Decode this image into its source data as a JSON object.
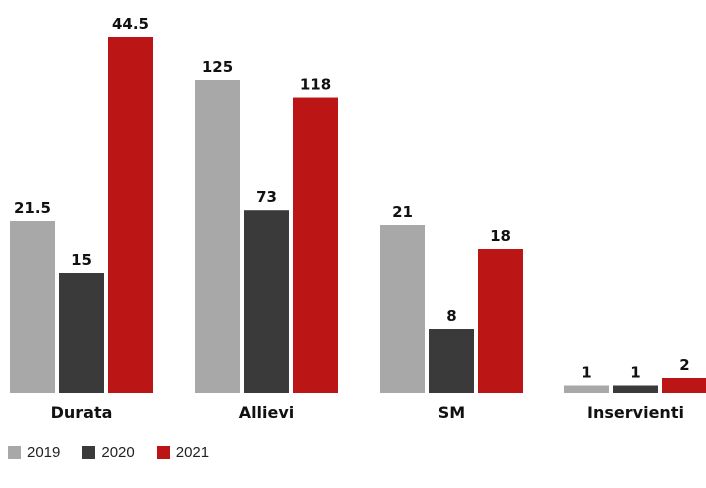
{
  "chart_data": {
    "type": "bar",
    "categories": [
      "Durata",
      "Allievi",
      "SM",
      "Inservienti"
    ],
    "series": [
      {
        "name": "2019",
        "values": [
          21.5,
          125,
          21,
          1
        ],
        "color": "#a8a8a8"
      },
      {
        "name": "2020",
        "values": [
          15,
          73,
          8,
          1
        ],
        "color": "#3a3a3a"
      },
      {
        "name": "2021",
        "values": [
          44.5,
          118,
          18,
          2
        ],
        "color": "#bc1515"
      }
    ],
    "value_labels": [
      [
        "21.5",
        "125",
        "21",
        "1"
      ],
      [
        "15",
        "73",
        "8",
        "1"
      ],
      [
        "44.5",
        "118",
        "18",
        "2"
      ]
    ],
    "legend_position": "bottom-left",
    "grid": false
  }
}
